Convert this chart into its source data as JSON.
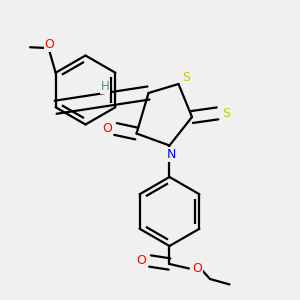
{
  "bg_color": "#f0f0f0",
  "atom_colors": {
    "C": "#000000",
    "N": "#0000ff",
    "O": "#ff0000",
    "S": "#cccc00",
    "H": "#4a9090"
  },
  "bond_color": "#000000",
  "bond_width": 1.6,
  "dbo_ring": 0.016,
  "dbo_exo": 0.018,
  "figsize": [
    3.0,
    3.0
  ],
  "dpi": 100,
  "xlim": [
    0.0,
    1.0
  ],
  "ylim": [
    0.0,
    1.0
  ]
}
